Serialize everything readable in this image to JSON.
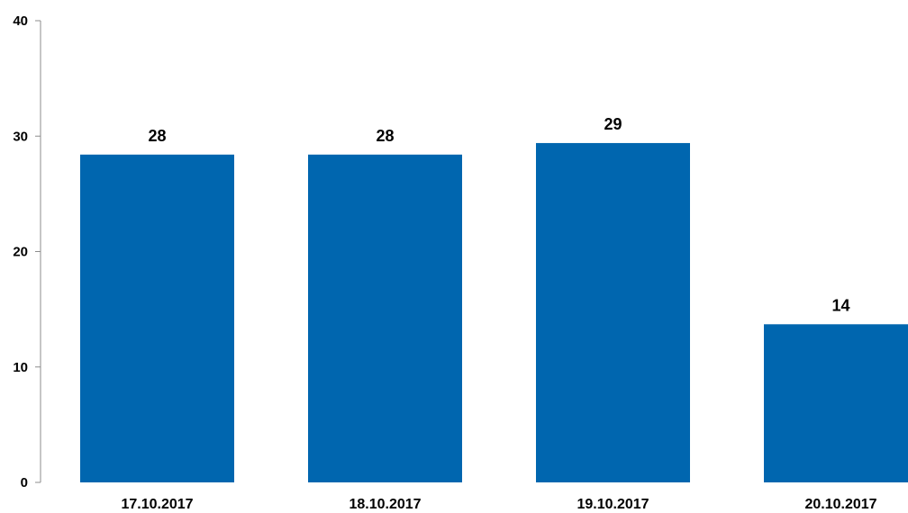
{
  "chart_data": {
    "type": "bar",
    "categories": [
      "17.10.2017",
      "18.10.2017",
      "19.10.2017",
      "20.10.2017"
    ],
    "values": [
      28.4,
      28.4,
      29.4,
      13.7
    ],
    "data_labels": [
      "28",
      "28",
      "29",
      "14"
    ],
    "title": "",
    "xlabel": "",
    "ylabel": "",
    "ylim": [
      0,
      40
    ],
    "yticks": [
      "0",
      "10",
      "20",
      "30",
      "40"
    ],
    "grid": false,
    "legend": "none",
    "bar_color": "#0066AF"
  }
}
